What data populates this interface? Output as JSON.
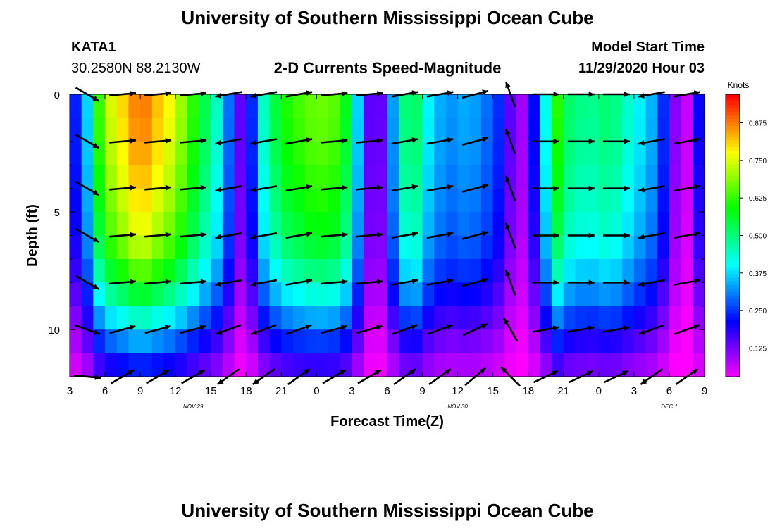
{
  "header": {
    "title_top": "University of Southern Mississippi Ocean Cube",
    "title_bottom": "University of Southern Mississippi Ocean Cube",
    "station_id": "KATA1",
    "station_coords": "30.2580N 88.2130W",
    "model_start_label": "Model Start Time",
    "model_start_value": "11/29/2020 Hour 03"
  },
  "chart_data": {
    "type": "heatmap",
    "title": "2-D Currents Speed-Magnitude",
    "xlabel": "Forecast Time(Z)",
    "ylabel": "Depth (ft)",
    "colorbar_label": "Knots",
    "colorbar_ticks": [
      "0.875",
      "0.750",
      "0.625",
      "0.500",
      "0.375",
      "0.250",
      "0.125"
    ],
    "colorbar_tick_values": [
      0.875,
      0.75,
      0.625,
      0.5,
      0.375,
      0.25,
      0.125
    ],
    "colorbar_range": [
      0.03,
      0.97
    ],
    "xlim": [
      3,
      57
    ],
    "ylim": [
      0,
      12
    ],
    "x_ticks": [
      3,
      6,
      9,
      12,
      15,
      18,
      21,
      24,
      27,
      30,
      33,
      36,
      39,
      42,
      45,
      48,
      51,
      54,
      57
    ],
    "x_tick_labels": [
      "3",
      "6",
      "9",
      "12",
      "15",
      "18",
      "21",
      "0",
      "3",
      "6",
      "9",
      "12",
      "15",
      "18",
      "21",
      "0",
      "3",
      "6",
      "9"
    ],
    "y_ticks": [
      0,
      5,
      10
    ],
    "y_tick_labels": [
      "0",
      "5",
      "10"
    ],
    "date_labels": [
      {
        "x": 13.5,
        "text": "NOV 29"
      },
      {
        "x": 36,
        "text": "NOV 30"
      },
      {
        "x": 58.5,
        "text": "DEC 1"
      }
    ],
    "depths": [
      0,
      1,
      2,
      3,
      4,
      5,
      6,
      7,
      8,
      9,
      10,
      11,
      12
    ],
    "surface_speed_by_hour": [
      [
        3,
        0.28
      ],
      [
        4,
        0.2
      ],
      [
        5,
        0.55
      ],
      [
        6,
        0.72
      ],
      [
        9,
        0.9
      ],
      [
        12,
        0.75
      ],
      [
        14,
        0.58
      ],
      [
        15.5,
        0.45
      ],
      [
        16.5,
        0.3
      ],
      [
        17,
        0.2
      ],
      [
        17.8,
        0.12
      ],
      [
        18.5,
        0.25
      ],
      [
        19.5,
        0.45
      ],
      [
        21,
        0.6
      ],
      [
        24,
        0.68
      ],
      [
        26,
        0.65
      ],
      [
        27,
        0.5
      ],
      [
        27.8,
        0.3
      ],
      [
        28.5,
        0.15
      ],
      [
        29.2,
        0.1
      ],
      [
        30,
        0.22
      ],
      [
        30.8,
        0.4
      ],
      [
        32,
        0.58
      ],
      [
        33.5,
        0.4
      ],
      [
        35,
        0.32
      ],
      [
        37,
        0.35
      ],
      [
        38.5,
        0.3
      ],
      [
        39.5,
        0.25
      ],
      [
        40.5,
        0.15
      ],
      [
        41.5,
        0.1
      ],
      [
        42.5,
        0.22
      ],
      [
        43.5,
        0.42
      ],
      [
        44.5,
        0.62
      ],
      [
        45.5,
        0.52
      ],
      [
        47,
        0.48
      ],
      [
        49,
        0.52
      ],
      [
        51,
        0.42
      ],
      [
        52.5,
        0.35
      ],
      [
        53.5,
        0.25
      ],
      [
        54.5,
        0.12
      ],
      [
        55.5,
        0.07
      ],
      [
        56.3,
        0.15
      ],
      [
        57,
        0.38
      ]
    ],
    "depth_attenuation": [
      1.0,
      1.0,
      0.98,
      0.96,
      0.93,
      0.9,
      0.86,
      0.8,
      0.7,
      0.58,
      0.45,
      0.33,
      0.22
    ],
    "vector_depths": [
      0,
      2,
      4,
      6,
      8,
      10,
      12
    ],
    "vector_hours": [
      4.5,
      7.5,
      10.5,
      13.5,
      16.5,
      19.5,
      22.5,
      25.5,
      28.5,
      31.5,
      34.5,
      37.5,
      40.5,
      43.5,
      46.5,
      49.5,
      52.5,
      55.5
    ],
    "vector_angles_deg": [
      -30,
      5,
      5,
      5,
      190,
      190,
      10,
      5,
      5,
      10,
      10,
      15,
      110,
      0,
      0,
      0,
      190,
      10
    ],
    "vector_depth_angle_shift_deg": [
      0,
      0,
      0,
      0,
      0,
      10,
      25
    ],
    "colors": {
      "axis": "#000000",
      "arrow": "#000000",
      "background": "#ffffff"
    }
  }
}
